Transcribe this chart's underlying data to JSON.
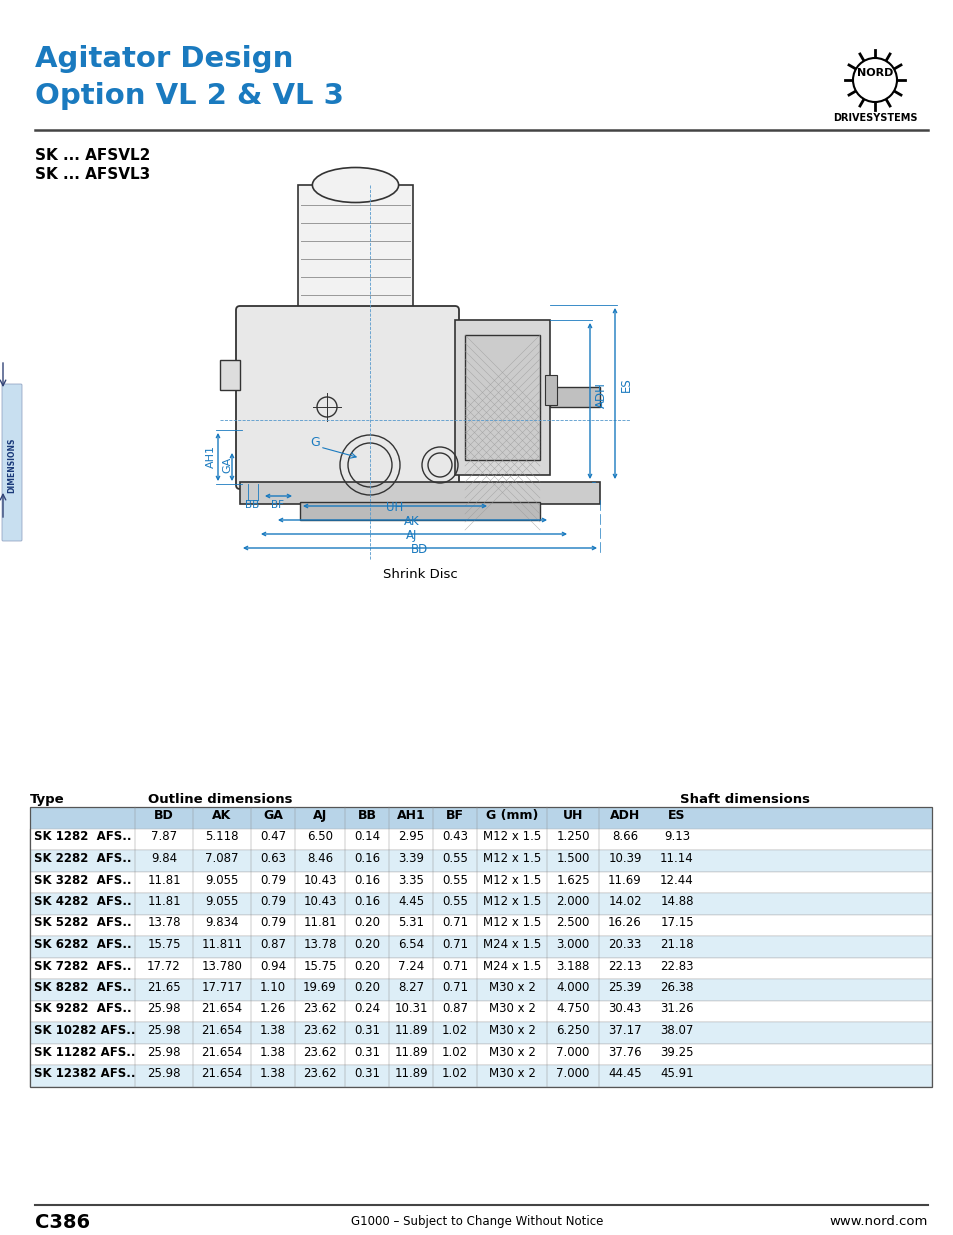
{
  "title_line1": "Agitator Design",
  "title_line2": "Option VL 2 & VL 3",
  "title_color": "#1a7abf",
  "subtitle1": "SK ... AFSVL2",
  "subtitle2": "SK ... AFSVL3",
  "header_left": "Type",
  "header_outline": "Outline dimensions",
  "header_shaft": "Shaft dimensions",
  "col_headers": [
    "BD",
    "AK",
    "GA",
    "AJ",
    "BB",
    "AH1",
    "BF",
    "G (mm)",
    "UH",
    "ADH",
    "ES"
  ],
  "rows": [
    [
      "SK 1282  AFS..",
      "7.87",
      "5.118",
      "0.47",
      "6.50",
      "0.14",
      "2.95",
      "0.43",
      "M12 x 1.5",
      "1.250",
      "8.66",
      "9.13"
    ],
    [
      "SK 2282  AFS..",
      "9.84",
      "7.087",
      "0.63",
      "8.46",
      "0.16",
      "3.39",
      "0.55",
      "M12 x 1.5",
      "1.500",
      "10.39",
      "11.14"
    ],
    [
      "SK 3282  AFS..",
      "11.81",
      "9.055",
      "0.79",
      "10.43",
      "0.16",
      "3.35",
      "0.55",
      "M12 x 1.5",
      "1.625",
      "11.69",
      "12.44"
    ],
    [
      "SK 4282  AFS..",
      "11.81",
      "9.055",
      "0.79",
      "10.43",
      "0.16",
      "4.45",
      "0.55",
      "M12 x 1.5",
      "2.000",
      "14.02",
      "14.88"
    ],
    [
      "SK 5282  AFS..",
      "13.78",
      "9.834",
      "0.79",
      "11.81",
      "0.20",
      "5.31",
      "0.71",
      "M12 x 1.5",
      "2.500",
      "16.26",
      "17.15"
    ],
    [
      "SK 6282  AFS..",
      "15.75",
      "11.811",
      "0.87",
      "13.78",
      "0.20",
      "6.54",
      "0.71",
      "M24 x 1.5",
      "3.000",
      "20.33",
      "21.18"
    ],
    [
      "SK 7282  AFS..",
      "17.72",
      "13.780",
      "0.94",
      "15.75",
      "0.20",
      "7.24",
      "0.71",
      "M24 x 1.5",
      "3.188",
      "22.13",
      "22.83"
    ],
    [
      "SK 8282  AFS..",
      "21.65",
      "17.717",
      "1.10",
      "19.69",
      "0.20",
      "8.27",
      "0.71",
      "M30 x 2",
      "4.000",
      "25.39",
      "26.38"
    ],
    [
      "SK 9282  AFS..",
      "25.98",
      "21.654",
      "1.26",
      "23.62",
      "0.24",
      "10.31",
      "0.87",
      "M30 x 2",
      "4.750",
      "30.43",
      "31.26"
    ],
    [
      "SK 10282 AFS..",
      "25.98",
      "21.654",
      "1.38",
      "23.62",
      "0.31",
      "11.89",
      "1.02",
      "M30 x 2",
      "6.250",
      "37.17",
      "38.07"
    ],
    [
      "SK 11282 AFS..",
      "25.98",
      "21.654",
      "1.38",
      "23.62",
      "0.31",
      "11.89",
      "1.02",
      "M30 x 2",
      "7.000",
      "37.76",
      "39.25"
    ],
    [
      "SK 12382 AFS..",
      "25.98",
      "21.654",
      "1.38",
      "23.62",
      "0.31",
      "11.89",
      "1.02",
      "M30 x 2",
      "7.000",
      "44.45",
      "45.91"
    ]
  ],
  "footer_left": "C386",
  "footer_center": "G1000 – Subject to Change Without Notice",
  "footer_right": "www.nord.com",
  "page_bg": "#ffffff",
  "table_header_bg": "#b8d4e8",
  "table_row_odd_bg": "#ffffff",
  "table_row_even_bg": "#ddeef7",
  "shrink_disc_label": "Shrink Disc",
  "dimensions_label": "DIMENSIONS",
  "blue": "#1a7abf",
  "dark": "#222222",
  "draw_color": "#333333"
}
